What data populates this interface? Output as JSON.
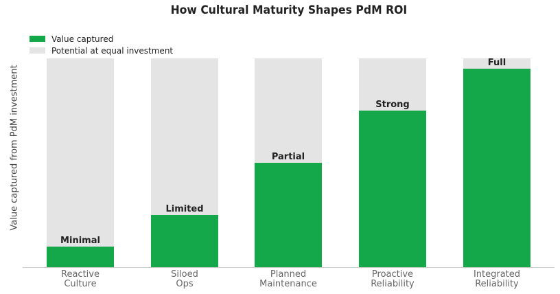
{
  "chart_data": {
    "type": "bar",
    "title": "How Cultural Maturity Shapes PdM ROI",
    "xlabel": "",
    "ylabel": "Value captured from PdM investment",
    "ylim": [
      0,
      100
    ],
    "grid": false,
    "legend_position": "upper left",
    "categories": [
      "Reactive\nCulture",
      "Siloed\nOps",
      "Planned\nMaintenance",
      "Proactive\nReliability",
      "Integrated\nReliability"
    ],
    "category_lines": [
      [
        "Reactive",
        "Culture"
      ],
      [
        "Siloed",
        "Ops"
      ],
      [
        "Planned",
        "Maintenance"
      ],
      [
        "Proactive",
        "Reliability"
      ],
      [
        "Integrated",
        "Reliability"
      ]
    ],
    "series": [
      {
        "name": "Value captured",
        "color": "#14a84b",
        "values": [
          10,
          25,
          50,
          75,
          95
        ]
      },
      {
        "name": "Potential at equal investment",
        "color": "#e4e4e4",
        "values": [
          100,
          100,
          100,
          100,
          100
        ]
      }
    ],
    "annotations": [
      "Minimal",
      "Limited",
      "Partial",
      "Strong",
      "Full"
    ]
  }
}
